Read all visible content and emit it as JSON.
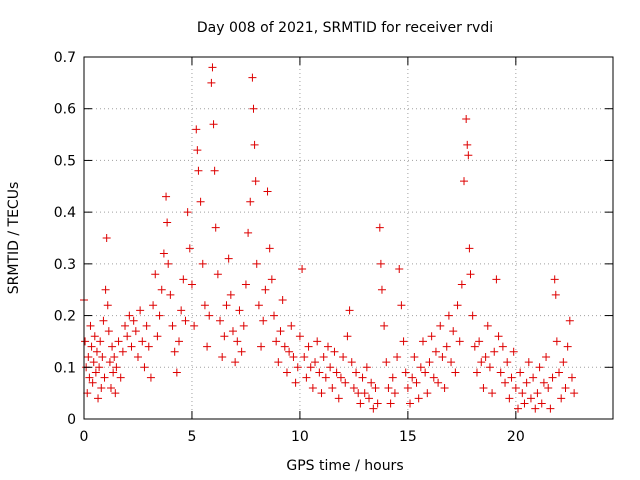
{
  "chart_data": {
    "type": "scatter",
    "title": "Day 008 of 2021, SRMTID for receiver rvdi",
    "xlabel": "GPS time / hours",
    "ylabel": "SRMTID / TECUs",
    "xlim": [
      0,
      24.5
    ],
    "ylim": [
      0,
      0.7
    ],
    "xticks": [
      0,
      5,
      10,
      15,
      20
    ],
    "xtick_labels": [
      "0",
      "5",
      "10",
      "15",
      "20"
    ],
    "yticks": [
      0,
      0.1,
      0.2,
      0.3,
      0.4,
      0.5,
      0.6,
      0.7
    ],
    "ytick_labels": [
      "0",
      "0.1",
      "0.2",
      "0.3",
      "0.4",
      "0.5",
      "0.6",
      "0.7"
    ],
    "grid": true,
    "marker": "plus",
    "marker_color": "#dd0000",
    "series": [
      {
        "name": "SRMTID",
        "points": [
          [
            0.0,
            0.23
          ],
          [
            0.05,
            0.15
          ],
          [
            0.1,
            0.1
          ],
          [
            0.15,
            0.05
          ],
          [
            0.2,
            0.12
          ],
          [
            0.25,
            0.08
          ],
          [
            0.3,
            0.18
          ],
          [
            0.35,
            0.14
          ],
          [
            0.4,
            0.07
          ],
          [
            0.45,
            0.11
          ],
          [
            0.5,
            0.16
          ],
          [
            0.55,
            0.09
          ],
          [
            0.6,
            0.13
          ],
          [
            0.65,
            0.04
          ],
          [
            0.7,
            0.1
          ],
          [
            0.75,
            0.15
          ],
          [
            0.8,
            0.06
          ],
          [
            0.85,
            0.12
          ],
          [
            0.9,
            0.19
          ],
          [
            0.95,
            0.08
          ],
          [
            1.0,
            0.25
          ],
          [
            1.05,
            0.35
          ],
          [
            1.1,
            0.22
          ],
          [
            1.15,
            0.17
          ],
          [
            1.2,
            0.11
          ],
          [
            1.25,
            0.06
          ],
          [
            1.3,
            0.14
          ],
          [
            1.35,
            0.09
          ],
          [
            1.4,
            0.12
          ],
          [
            1.45,
            0.05
          ],
          [
            1.5,
            0.1
          ],
          [
            1.6,
            0.15
          ],
          [
            1.7,
            0.08
          ],
          [
            1.8,
            0.13
          ],
          [
            1.9,
            0.18
          ],
          [
            2.0,
            0.16
          ],
          [
            2.1,
            0.2
          ],
          [
            2.2,
            0.14
          ],
          [
            2.3,
            0.19
          ],
          [
            2.4,
            0.17
          ],
          [
            2.5,
            0.12
          ],
          [
            2.6,
            0.21
          ],
          [
            2.7,
            0.15
          ],
          [
            2.8,
            0.1
          ],
          [
            2.9,
            0.18
          ],
          [
            3.0,
            0.14
          ],
          [
            3.1,
            0.08
          ],
          [
            3.2,
            0.22
          ],
          [
            3.3,
            0.28
          ],
          [
            3.4,
            0.16
          ],
          [
            3.5,
            0.2
          ],
          [
            3.6,
            0.25
          ],
          [
            3.7,
            0.32
          ],
          [
            3.8,
            0.43
          ],
          [
            3.85,
            0.38
          ],
          [
            3.9,
            0.3
          ],
          [
            4.0,
            0.24
          ],
          [
            4.1,
            0.18
          ],
          [
            4.2,
            0.13
          ],
          [
            4.3,
            0.09
          ],
          [
            4.4,
            0.15
          ],
          [
            4.5,
            0.21
          ],
          [
            4.6,
            0.27
          ],
          [
            4.7,
            0.19
          ],
          [
            4.8,
            0.4
          ],
          [
            4.9,
            0.33
          ],
          [
            5.0,
            0.26
          ],
          [
            5.1,
            0.18
          ],
          [
            5.2,
            0.56
          ],
          [
            5.25,
            0.52
          ],
          [
            5.3,
            0.48
          ],
          [
            5.4,
            0.42
          ],
          [
            5.5,
            0.3
          ],
          [
            5.6,
            0.22
          ],
          [
            5.7,
            0.14
          ],
          [
            5.8,
            0.2
          ],
          [
            5.9,
            0.65
          ],
          [
            5.95,
            0.68
          ],
          [
            6.0,
            0.57
          ],
          [
            6.05,
            0.48
          ],
          [
            6.1,
            0.37
          ],
          [
            6.2,
            0.28
          ],
          [
            6.3,
            0.19
          ],
          [
            6.4,
            0.12
          ],
          [
            6.5,
            0.16
          ],
          [
            6.6,
            0.22
          ],
          [
            6.7,
            0.31
          ],
          [
            6.8,
            0.24
          ],
          [
            6.9,
            0.17
          ],
          [
            7.0,
            0.11
          ],
          [
            7.1,
            0.15
          ],
          [
            7.2,
            0.21
          ],
          [
            7.3,
            0.13
          ],
          [
            7.4,
            0.18
          ],
          [
            7.5,
            0.26
          ],
          [
            7.6,
            0.36
          ],
          [
            7.7,
            0.42
          ],
          [
            7.8,
            0.66
          ],
          [
            7.85,
            0.6
          ],
          [
            7.9,
            0.53
          ],
          [
            7.95,
            0.46
          ],
          [
            8.0,
            0.3
          ],
          [
            8.1,
            0.22
          ],
          [
            8.2,
            0.14
          ],
          [
            8.3,
            0.19
          ],
          [
            8.4,
            0.25
          ],
          [
            8.5,
            0.44
          ],
          [
            8.6,
            0.33
          ],
          [
            8.7,
            0.27
          ],
          [
            8.8,
            0.2
          ],
          [
            8.9,
            0.15
          ],
          [
            9.0,
            0.11
          ],
          [
            9.1,
            0.17
          ],
          [
            9.2,
            0.23
          ],
          [
            9.3,
            0.14
          ],
          [
            9.4,
            0.09
          ],
          [
            9.5,
            0.13
          ],
          [
            9.6,
            0.18
          ],
          [
            9.7,
            0.12
          ],
          [
            9.8,
            0.07
          ],
          [
            9.9,
            0.1
          ],
          [
            10.0,
            0.16
          ],
          [
            10.1,
            0.29
          ],
          [
            10.2,
            0.12
          ],
          [
            10.3,
            0.08
          ],
          [
            10.4,
            0.14
          ],
          [
            10.5,
            0.1
          ],
          [
            10.6,
            0.06
          ],
          [
            10.7,
            0.11
          ],
          [
            10.8,
            0.15
          ],
          [
            10.9,
            0.09
          ],
          [
            11.0,
            0.05
          ],
          [
            11.1,
            0.12
          ],
          [
            11.2,
            0.08
          ],
          [
            11.3,
            0.14
          ],
          [
            11.4,
            0.1
          ],
          [
            11.5,
            0.06
          ],
          [
            11.6,
            0.13
          ],
          [
            11.7,
            0.09
          ],
          [
            11.8,
            0.04
          ],
          [
            11.9,
            0.08
          ],
          [
            12.0,
            0.12
          ],
          [
            12.1,
            0.07
          ],
          [
            12.2,
            0.16
          ],
          [
            12.3,
            0.21
          ],
          [
            12.4,
            0.11
          ],
          [
            12.5,
            0.06
          ],
          [
            12.6,
            0.09
          ],
          [
            12.7,
            0.05
          ],
          [
            12.8,
            0.03
          ],
          [
            12.9,
            0.08
          ],
          [
            13.0,
            0.05
          ],
          [
            13.1,
            0.1
          ],
          [
            13.2,
            0.04
          ],
          [
            13.3,
            0.07
          ],
          [
            13.4,
            0.02
          ],
          [
            13.5,
            0.06
          ],
          [
            13.6,
            0.03
          ],
          [
            13.7,
            0.37
          ],
          [
            13.75,
            0.3
          ],
          [
            13.8,
            0.25
          ],
          [
            13.9,
            0.18
          ],
          [
            14.0,
            0.11
          ],
          [
            14.1,
            0.06
          ],
          [
            14.2,
            0.03
          ],
          [
            14.3,
            0.08
          ],
          [
            14.4,
            0.05
          ],
          [
            14.5,
            0.12
          ],
          [
            14.6,
            0.29
          ],
          [
            14.7,
            0.22
          ],
          [
            14.8,
            0.15
          ],
          [
            14.9,
            0.09
          ],
          [
            15.0,
            0.06
          ],
          [
            15.1,
            0.03
          ],
          [
            15.2,
            0.08
          ],
          [
            15.3,
            0.12
          ],
          [
            15.4,
            0.07
          ],
          [
            15.5,
            0.04
          ],
          [
            15.6,
            0.1
          ],
          [
            15.7,
            0.15
          ],
          [
            15.8,
            0.09
          ],
          [
            15.9,
            0.05
          ],
          [
            16.0,
            0.11
          ],
          [
            16.1,
            0.16
          ],
          [
            16.2,
            0.08
          ],
          [
            16.3,
            0.13
          ],
          [
            16.4,
            0.07
          ],
          [
            16.5,
            0.18
          ],
          [
            16.6,
            0.12
          ],
          [
            16.7,
            0.06
          ],
          [
            16.8,
            0.14
          ],
          [
            16.9,
            0.2
          ],
          [
            17.0,
            0.11
          ],
          [
            17.1,
            0.17
          ],
          [
            17.2,
            0.09
          ],
          [
            17.3,
            0.22
          ],
          [
            17.4,
            0.15
          ],
          [
            17.5,
            0.26
          ],
          [
            17.6,
            0.46
          ],
          [
            17.7,
            0.58
          ],
          [
            17.75,
            0.53
          ],
          [
            17.8,
            0.51
          ],
          [
            17.85,
            0.33
          ],
          [
            17.9,
            0.28
          ],
          [
            18.0,
            0.2
          ],
          [
            18.1,
            0.14
          ],
          [
            18.2,
            0.09
          ],
          [
            18.3,
            0.15
          ],
          [
            18.4,
            0.11
          ],
          [
            18.5,
            0.06
          ],
          [
            18.6,
            0.12
          ],
          [
            18.7,
            0.18
          ],
          [
            18.8,
            0.1
          ],
          [
            18.9,
            0.05
          ],
          [
            19.0,
            0.13
          ],
          [
            19.1,
            0.27
          ],
          [
            19.2,
            0.16
          ],
          [
            19.3,
            0.09
          ],
          [
            19.4,
            0.14
          ],
          [
            19.5,
            0.07
          ],
          [
            19.6,
            0.11
          ],
          [
            19.7,
            0.04
          ],
          [
            19.8,
            0.08
          ],
          [
            19.9,
            0.13
          ],
          [
            20.0,
            0.06
          ],
          [
            20.1,
            0.02
          ],
          [
            20.2,
            0.09
          ],
          [
            20.3,
            0.05
          ],
          [
            20.4,
            0.03
          ],
          [
            20.5,
            0.07
          ],
          [
            20.6,
            0.11
          ],
          [
            20.7,
            0.04
          ],
          [
            20.8,
            0.08
          ],
          [
            20.9,
            0.02
          ],
          [
            21.0,
            0.05
          ],
          [
            21.1,
            0.1
          ],
          [
            21.2,
            0.03
          ],
          [
            21.3,
            0.07
          ],
          [
            21.4,
            0.12
          ],
          [
            21.5,
            0.06
          ],
          [
            21.6,
            0.02
          ],
          [
            21.7,
            0.08
          ],
          [
            21.8,
            0.27
          ],
          [
            21.85,
            0.24
          ],
          [
            21.9,
            0.15
          ],
          [
            22.0,
            0.09
          ],
          [
            22.1,
            0.04
          ],
          [
            22.2,
            0.11
          ],
          [
            22.3,
            0.06
          ],
          [
            22.4,
            0.14
          ],
          [
            22.5,
            0.19
          ],
          [
            22.6,
            0.08
          ],
          [
            22.7,
            0.05
          ]
        ]
      }
    ]
  }
}
